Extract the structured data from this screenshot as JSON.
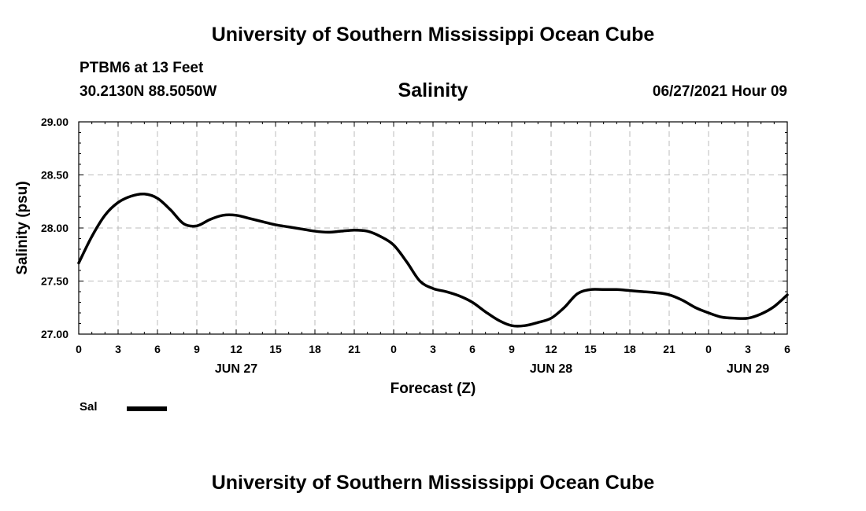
{
  "header": {
    "title": "University of Southern Mississippi Ocean Cube",
    "station": "PTBM6 at 13 Feet",
    "coords": "30.2130N  88.5050W",
    "variable": "Salinity",
    "datetime": "06/27/2021 Hour 09"
  },
  "footer": {
    "title": "University of Southern Mississippi Ocean Cube"
  },
  "legend": {
    "label": "Sal",
    "color": "#000000"
  },
  "chart_data": {
    "type": "line",
    "title": "Salinity",
    "xlabel": "Forecast (Z)",
    "ylabel": "Salinity (psu)",
    "xlim": [
      0,
      54
    ],
    "ylim": [
      27.0,
      29.0
    ],
    "grid": true,
    "x_tick_values": [
      0,
      3,
      6,
      9,
      12,
      15,
      18,
      21,
      24,
      27,
      30,
      33,
      36,
      39,
      42,
      45,
      48,
      51,
      54
    ],
    "x_tick_labels": [
      "0",
      "3",
      "6",
      "9",
      "12",
      "15",
      "18",
      "21",
      "0",
      "3",
      "6",
      "9",
      "12",
      "15",
      "18",
      "21",
      "0",
      "3",
      "6"
    ],
    "day_labels": [
      {
        "x": 12,
        "label": "JUN 27"
      },
      {
        "x": 36,
        "label": "JUN 28"
      },
      {
        "x": 51,
        "label": "JUN 29"
      }
    ],
    "y_ticks": [
      27.0,
      27.5,
      28.0,
      28.5,
      29.0
    ],
    "y_tick_labels": [
      "27.00",
      "27.50",
      "28.00",
      "28.50",
      "29.00"
    ],
    "series": [
      {
        "name": "Sal",
        "x": [
          0,
          1,
          2,
          3,
          4,
          5,
          6,
          7,
          8,
          9,
          10,
          11,
          12,
          13,
          14,
          15,
          16,
          17,
          18,
          19,
          20,
          21,
          22,
          23,
          24,
          25,
          26,
          27,
          28,
          29,
          30,
          31,
          32,
          33,
          34,
          35,
          36,
          37,
          38,
          39,
          40,
          41,
          42,
          43,
          44,
          45,
          46,
          47,
          48,
          49,
          50,
          51,
          52,
          53,
          54
        ],
        "values": [
          27.67,
          27.92,
          28.12,
          28.24,
          28.3,
          28.32,
          28.28,
          28.17,
          28.04,
          28.02,
          28.08,
          28.12,
          28.12,
          28.09,
          28.06,
          28.03,
          28.01,
          27.99,
          27.97,
          27.96,
          27.97,
          27.98,
          27.97,
          27.92,
          27.84,
          27.68,
          27.5,
          27.43,
          27.4,
          27.36,
          27.3,
          27.21,
          27.13,
          27.08,
          27.08,
          27.11,
          27.15,
          27.25,
          27.38,
          27.42,
          27.42,
          27.42,
          27.41,
          27.4,
          27.39,
          27.37,
          27.32,
          27.25,
          27.2,
          27.16,
          27.15,
          27.15,
          27.19,
          27.26,
          27.37
        ]
      }
    ]
  }
}
